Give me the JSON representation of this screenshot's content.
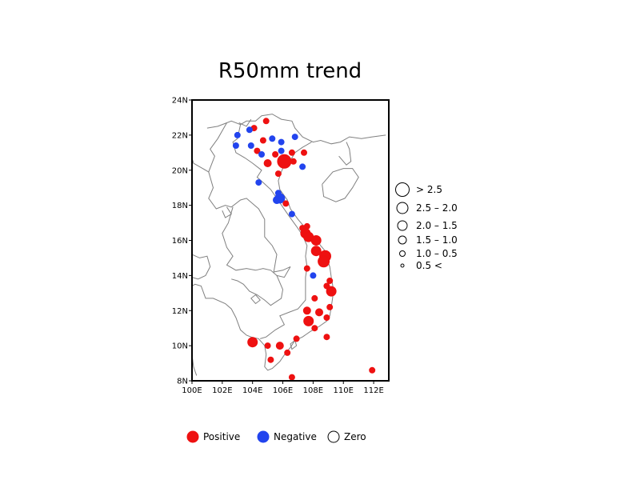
{
  "title": "R50mm trend",
  "map": {
    "lon_range": [
      100,
      113
    ],
    "lat_range": [
      8,
      24
    ],
    "x_ticks": [
      {
        "value": 100,
        "label": "100E"
      },
      {
        "value": 102,
        "label": "102E"
      },
      {
        "value": 104,
        "label": "104E"
      },
      {
        "value": 106,
        "label": "106E"
      },
      {
        "value": 108,
        "label": "108E"
      },
      {
        "value": 110,
        "label": "110E"
      },
      {
        "value": 112,
        "label": "112E"
      }
    ],
    "y_ticks": [
      {
        "value": 8,
        "label": "8N"
      },
      {
        "value": 10,
        "label": "10N"
      },
      {
        "value": 12,
        "label": "12N"
      },
      {
        "value": 14,
        "label": "14N"
      },
      {
        "value": 16,
        "label": "16N"
      },
      {
        "value": 18,
        "label": "18N"
      },
      {
        "value": 20,
        "label": "20N"
      },
      {
        "value": 22,
        "label": "22N"
      },
      {
        "value": 24,
        "label": "24N"
      }
    ]
  },
  "size_legend": [
    {
      "label": "> 2.5",
      "class": 5
    },
    {
      "label": "2.5 – 2.0",
      "class": 4
    },
    {
      "label": "2.0 – 1.5",
      "class": 3
    },
    {
      "label": "1.5 – 1.0",
      "class": 2
    },
    {
      "label": "1.0 – 0.5",
      "class": 1
    },
    {
      "label": "0.5 <",
      "class": 0
    }
  ],
  "sign_legend": [
    {
      "label": "Positive",
      "color": "#ee1111",
      "filled": true
    },
    {
      "label": "Negative",
      "color": "#2244ee",
      "filled": true
    },
    {
      "label": "Zero",
      "color": "#000000",
      "filled": false
    }
  ],
  "colors": {
    "positive": "#ee1111",
    "negative": "#2244ee",
    "coast": "#808080"
  },
  "stations": [
    {
      "lon": 104.1,
      "lat": 22.4,
      "sign": "positive",
      "class": 1
    },
    {
      "lon": 103.8,
      "lat": 22.3,
      "sign": "negative",
      "class": 1
    },
    {
      "lon": 103.0,
      "lat": 22.0,
      "sign": "negative",
      "class": 1
    },
    {
      "lon": 104.9,
      "lat": 22.8,
      "sign": "positive",
      "class": 1
    },
    {
      "lon": 105.3,
      "lat": 21.8,
      "sign": "negative",
      "class": 1
    },
    {
      "lon": 105.9,
      "lat": 21.6,
      "sign": "negative",
      "class": 1
    },
    {
      "lon": 106.8,
      "lat": 21.9,
      "sign": "negative",
      "class": 1
    },
    {
      "lon": 102.9,
      "lat": 21.4,
      "sign": "negative",
      "class": 1
    },
    {
      "lon": 103.9,
      "lat": 21.4,
      "sign": "negative",
      "class": 1
    },
    {
      "lon": 104.7,
      "lat": 21.7,
      "sign": "positive",
      "class": 1
    },
    {
      "lon": 104.3,
      "lat": 21.1,
      "sign": "positive",
      "class": 1
    },
    {
      "lon": 104.6,
      "lat": 20.9,
      "sign": "negative",
      "class": 1
    },
    {
      "lon": 105.5,
      "lat": 20.9,
      "sign": "positive",
      "class": 1
    },
    {
      "lon": 105.9,
      "lat": 21.1,
      "sign": "negative",
      "class": 1
    },
    {
      "lon": 106.6,
      "lat": 21.0,
      "sign": "positive",
      "class": 1
    },
    {
      "lon": 107.4,
      "lat": 21.0,
      "sign": "positive",
      "class": 1
    },
    {
      "lon": 105.0,
      "lat": 20.4,
      "sign": "positive",
      "class": 2
    },
    {
      "lon": 106.1,
      "lat": 20.5,
      "sign": "positive",
      "class": 5
    },
    {
      "lon": 106.7,
      "lat": 20.5,
      "sign": "positive",
      "class": 1
    },
    {
      "lon": 107.3,
      "lat": 20.2,
      "sign": "negative",
      "class": 1
    },
    {
      "lon": 105.7,
      "lat": 19.8,
      "sign": "positive",
      "class": 1
    },
    {
      "lon": 104.4,
      "lat": 19.3,
      "sign": "negative",
      "class": 1
    },
    {
      "lon": 105.7,
      "lat": 18.7,
      "sign": "negative",
      "class": 1
    },
    {
      "lon": 105.8,
      "lat": 18.4,
      "sign": "negative",
      "class": 3
    },
    {
      "lon": 105.6,
      "lat": 18.3,
      "sign": "negative",
      "class": 2
    },
    {
      "lon": 106.2,
      "lat": 18.1,
      "sign": "positive",
      "class": 1
    },
    {
      "lon": 106.6,
      "lat": 17.5,
      "sign": "negative",
      "class": 1
    },
    {
      "lon": 107.6,
      "lat": 16.8,
      "sign": "positive",
      "class": 1
    },
    {
      "lon": 107.3,
      "lat": 16.7,
      "sign": "positive",
      "class": 1
    },
    {
      "lon": 107.5,
      "lat": 16.4,
      "sign": "positive",
      "class": 3
    },
    {
      "lon": 107.7,
      "lat": 16.2,
      "sign": "positive",
      "class": 3
    },
    {
      "lon": 108.2,
      "lat": 16.0,
      "sign": "positive",
      "class": 3
    },
    {
      "lon": 108.2,
      "lat": 15.4,
      "sign": "positive",
      "class": 3
    },
    {
      "lon": 108.8,
      "lat": 15.1,
      "sign": "positive",
      "class": 4
    },
    {
      "lon": 108.7,
      "lat": 14.8,
      "sign": "positive",
      "class": 4
    },
    {
      "lon": 107.6,
      "lat": 14.4,
      "sign": "positive",
      "class": 1
    },
    {
      "lon": 108.0,
      "lat": 14.0,
      "sign": "negative",
      "class": 1
    },
    {
      "lon": 109.1,
      "lat": 13.7,
      "sign": "positive",
      "class": 1
    },
    {
      "lon": 108.9,
      "lat": 13.4,
      "sign": "positive",
      "class": 1
    },
    {
      "lon": 109.2,
      "lat": 13.1,
      "sign": "positive",
      "class": 3
    },
    {
      "lon": 108.1,
      "lat": 12.7,
      "sign": "positive",
      "class": 1
    },
    {
      "lon": 109.1,
      "lat": 12.2,
      "sign": "positive",
      "class": 1
    },
    {
      "lon": 107.6,
      "lat": 12.0,
      "sign": "positive",
      "class": 2
    },
    {
      "lon": 108.4,
      "lat": 11.9,
      "sign": "positive",
      "class": 2
    },
    {
      "lon": 107.7,
      "lat": 11.4,
      "sign": "positive",
      "class": 3
    },
    {
      "lon": 108.9,
      "lat": 11.6,
      "sign": "positive",
      "class": 1
    },
    {
      "lon": 108.1,
      "lat": 11.0,
      "sign": "positive",
      "class": 1
    },
    {
      "lon": 108.9,
      "lat": 10.5,
      "sign": "positive",
      "class": 1
    },
    {
      "lon": 106.9,
      "lat": 10.4,
      "sign": "positive",
      "class": 1
    },
    {
      "lon": 104.0,
      "lat": 10.2,
      "sign": "positive",
      "class": 3
    },
    {
      "lon": 105.0,
      "lat": 10.0,
      "sign": "positive",
      "class": 1
    },
    {
      "lon": 105.8,
      "lat": 10.0,
      "sign": "positive",
      "class": 2
    },
    {
      "lon": 106.3,
      "lat": 9.6,
      "sign": "positive",
      "class": 1
    },
    {
      "lon": 105.2,
      "lat": 9.2,
      "sign": "positive",
      "class": 1
    },
    {
      "lon": 106.6,
      "lat": 8.2,
      "sign": "positive",
      "class": 1
    },
    {
      "lon": 111.9,
      "lat": 8.6,
      "sign": "positive",
      "class": 1
    }
  ]
}
